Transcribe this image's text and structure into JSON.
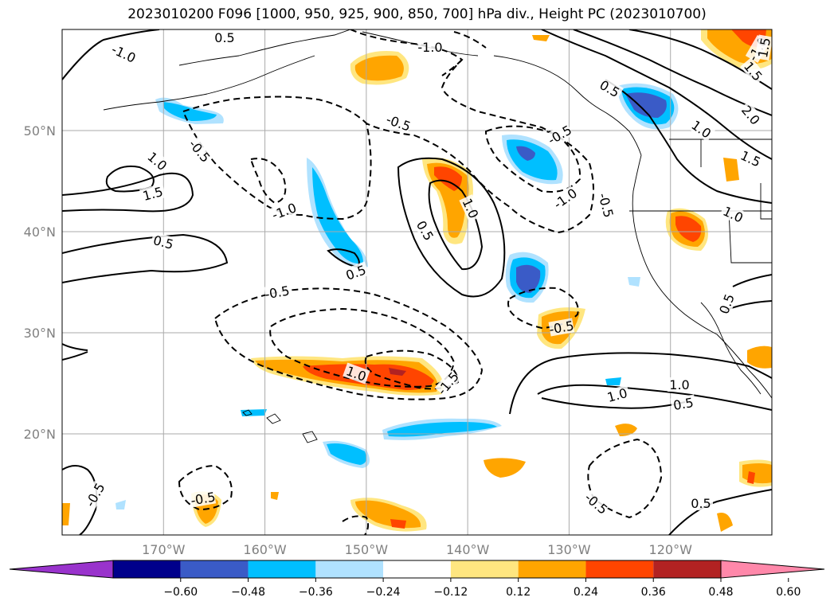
{
  "title": "2023010200 F096 [1000, 950, 925, 900, 850, 700] hPa div., Height PC (2023010700)",
  "map": {
    "lat_labels": [
      "50°N",
      "40°N",
      "30°N",
      "20°N"
    ],
    "lon_labels": [
      "170°W",
      "160°W",
      "150°W",
      "140°W",
      "130°W",
      "120°W"
    ],
    "lat_values": [
      50,
      40,
      30,
      20
    ],
    "lon_values": [
      -170,
      -160,
      -150,
      -140,
      -130,
      -120
    ],
    "lon_range": [
      -180,
      -110
    ],
    "lat_range": [
      10,
      60
    ]
  },
  "contour_labels": [
    {
      "text": "0.5"
    },
    {
      "text": "-1.0"
    },
    {
      "text": "-1.0"
    },
    {
      "text": "-0.5"
    },
    {
      "text": "0.5"
    },
    {
      "text": "-0.5"
    },
    {
      "text": "1.0"
    },
    {
      "text": "1.5"
    },
    {
      "text": "-1.0"
    },
    {
      "text": "0.5"
    },
    {
      "text": "0.5"
    },
    {
      "text": "1.0"
    },
    {
      "text": "0.5"
    },
    {
      "text": "-1.0"
    },
    {
      "text": "-0.5"
    },
    {
      "text": "2.0"
    },
    {
      "text": "1.5"
    },
    {
      "text": "1.0"
    },
    {
      "text": "1.5"
    },
    {
      "text": "1.0"
    },
    {
      "text": "-0.5"
    },
    {
      "text": "-0.5"
    },
    {
      "text": "1.0"
    },
    {
      "text": "-1.5"
    },
    {
      "text": "-0.5"
    },
    {
      "text": "1.0"
    },
    {
      "text": "1.0"
    },
    {
      "text": "0.5"
    },
    {
      "text": "0.5"
    },
    {
      "text": "-0.5"
    },
    {
      "text": "-0.5"
    },
    {
      "text": "0.5"
    },
    {
      "text": "-1.0"
    },
    {
      "text": "1.5"
    },
    {
      "text": "-0.5"
    }
  ],
  "colorbar": {
    "ticks": [
      "−0.60",
      "−0.48",
      "−0.36",
      "−0.24",
      "−0.12",
      "0.12",
      "0.24",
      "0.36",
      "0.48",
      "0.60"
    ],
    "colors": [
      "#9933cc",
      "#00008b",
      "#3a5bc7",
      "#00bfff",
      "#b0e2ff",
      "#ffffff",
      "#ffe680",
      "#ffa500",
      "#ff4500",
      "#b22222",
      "#ff88aa"
    ]
  }
}
